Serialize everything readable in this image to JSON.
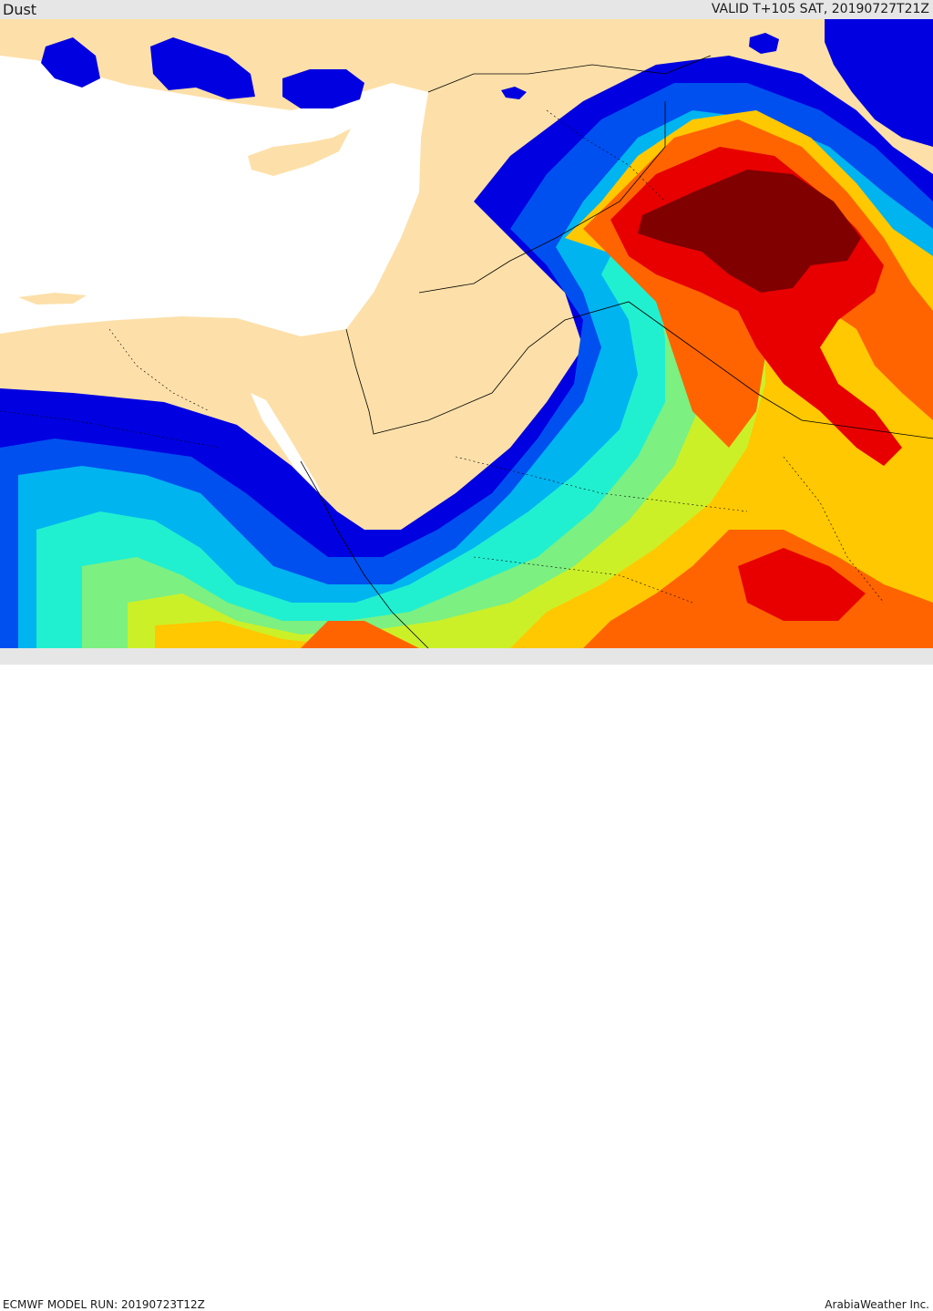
{
  "header": {
    "title": "Dust",
    "valid_time": "VALID T+105 SAT, 20190727T21Z"
  },
  "footer": {
    "model_run": "ECMWF MODEL RUN: 20190723T12Z",
    "credit": "ArabiaWeather Inc."
  },
  "colors": {
    "land": "#fde0a9",
    "sea": "#ffffff",
    "bar_background": "#e6e6e6",
    "dust_scale": [
      "#0000e0",
      "#0050f0",
      "#00b4f0",
      "#20f0d0",
      "#7cf080",
      "#ccf028",
      "#ffc800",
      "#ff6400",
      "#e80000",
      "#800000"
    ]
  },
  "map": {
    "region": "Eastern Mediterranean and Arabian Peninsula",
    "projection": "lat-lon"
  }
}
